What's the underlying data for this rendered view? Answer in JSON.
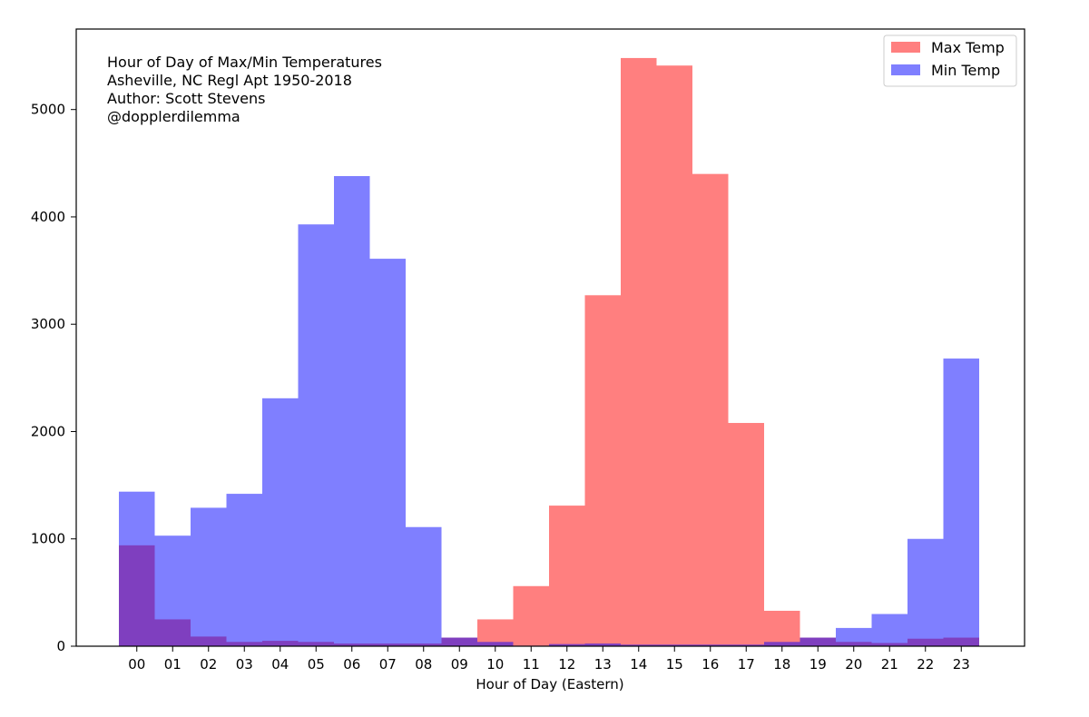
{
  "chart_data": {
    "type": "bar",
    "title": "",
    "annotation_lines": [
      "Hour of Day of Max/Min Temperatures",
      "Asheville, NC Regl Apt 1950-2018",
      "Author: Scott Stevens",
      "@dopplerdilemma"
    ],
    "xlabel": "Hour of Day (Eastern)",
    "ylabel": "",
    "categories": [
      "00",
      "01",
      "02",
      "03",
      "04",
      "05",
      "06",
      "07",
      "08",
      "09",
      "10",
      "11",
      "12",
      "13",
      "14",
      "15",
      "16",
      "17",
      "18",
      "19",
      "20",
      "21",
      "22",
      "23"
    ],
    "ylim": [
      0,
      5750
    ],
    "yticks": [
      0,
      1000,
      2000,
      3000,
      4000,
      5000
    ],
    "grid": false,
    "legend_position": "top-right",
    "series": [
      {
        "name": "Max Temp",
        "color": "#ff0000",
        "opacity": 0.5,
        "values": [
          940,
          250,
          90,
          40,
          50,
          40,
          25,
          25,
          25,
          80,
          250,
          560,
          1310,
          3270,
          5480,
          5410,
          4400,
          2080,
          330,
          80,
          40,
          30,
          70,
          80
        ]
      },
      {
        "name": "Min Temp",
        "color": "#0000ff",
        "opacity": 0.5,
        "values": [
          1440,
          1030,
          1290,
          1420,
          2310,
          3930,
          4380,
          3610,
          1110,
          80,
          40,
          5,
          20,
          25,
          15,
          15,
          15,
          15,
          40,
          80,
          170,
          300,
          1000,
          2680
        ]
      }
    ]
  }
}
